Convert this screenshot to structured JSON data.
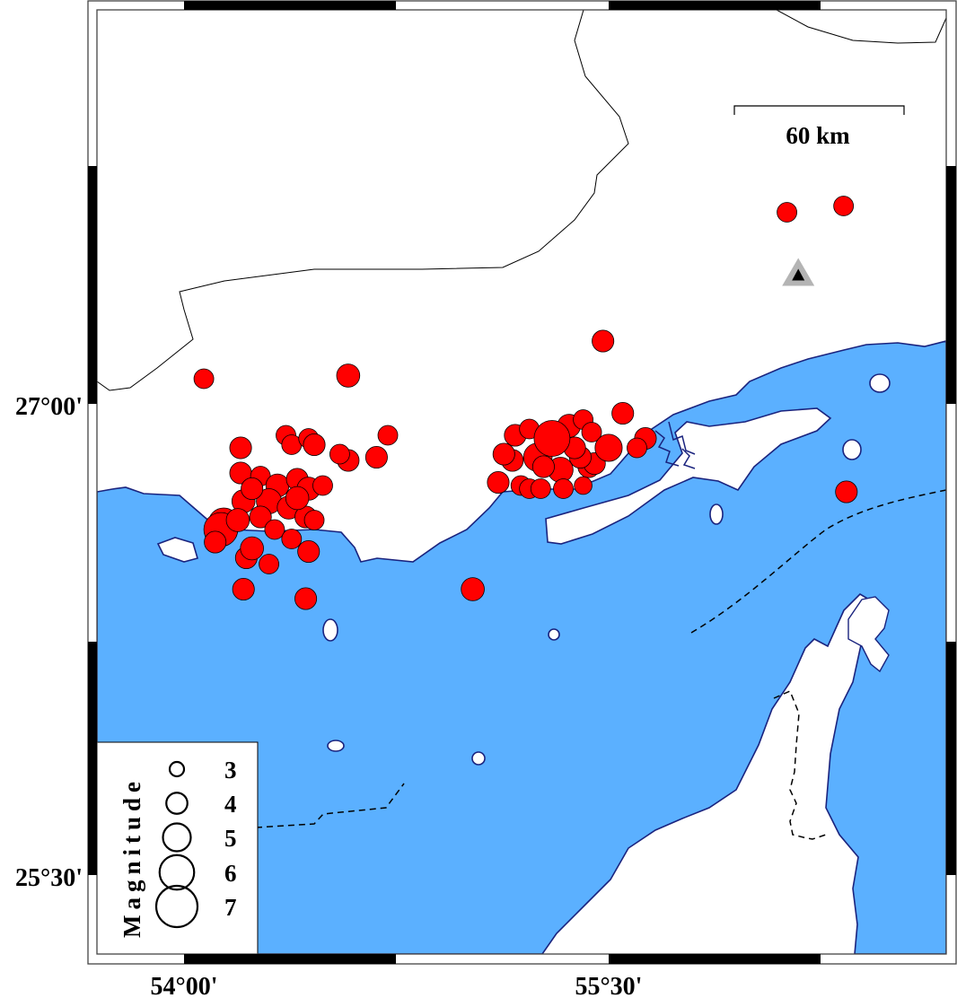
{
  "map": {
    "colors": {
      "sea": "#5BB0FF",
      "land": "#FFFFFF",
      "coastline": "#1A237E",
      "event_fill": "#FF0000",
      "station_outer": "#B4B4B4",
      "station_inner": "#000000"
    },
    "axes": {
      "lat_labels": [
        {
          "value": 27.0,
          "text": "27°00'"
        },
        {
          "value": 25.5,
          "text": "25°30'"
        }
      ],
      "lon_labels": [
        {
          "value": 54.0,
          "text": "54°00'"
        },
        {
          "value": 55.5,
          "text": "55°30'"
        }
      ]
    },
    "scale_bar": {
      "label": "60 km"
    },
    "legend": {
      "title": "Magnitude",
      "items": [
        {
          "mag": 3,
          "label": "3"
        },
        {
          "mag": 4,
          "label": "4"
        },
        {
          "mag": 5,
          "label": "5"
        },
        {
          "mag": 6,
          "label": "6"
        },
        {
          "mag": 7,
          "label": "7"
        }
      ]
    },
    "station": {
      "lon": 56.17,
      "lat": 27.41,
      "icon": "triangle-icon"
    },
    "events": [
      [
        54.07,
        27.08,
        3.0
      ],
      [
        54.58,
        27.09,
        3.5
      ],
      [
        55.48,
        27.2,
        3.3
      ],
      [
        56.13,
        27.61,
        3.0
      ],
      [
        56.33,
        27.63,
        3.0
      ],
      [
        55.55,
        26.97,
        3.3
      ],
      [
        55.63,
        26.89,
        3.3
      ],
      [
        55.6,
        26.86,
        3.0
      ],
      [
        56.34,
        26.72,
        3.3
      ],
      [
        55.02,
        26.41,
        3.5
      ],
      [
        54.21,
        26.41,
        3.3
      ],
      [
        54.43,
        26.38,
        3.3
      ],
      [
        54.44,
        26.53,
        3.3
      ],
      [
        54.72,
        26.9,
        3.0
      ],
      [
        54.68,
        26.83,
        3.3
      ],
      [
        54.58,
        26.82,
        3.3
      ],
      [
        54.55,
        26.84,
        3.0
      ],
      [
        54.2,
        26.86,
        3.3
      ],
      [
        54.2,
        26.78,
        3.3
      ],
      [
        54.36,
        26.9,
        3.0
      ],
      [
        54.38,
        26.87,
        3.0
      ],
      [
        54.44,
        26.89,
        3.0
      ],
      [
        54.46,
        26.87,
        3.3
      ],
      [
        54.14,
        26.62,
        4.6
      ],
      [
        54.13,
        26.6,
        5.1
      ],
      [
        54.11,
        26.56,
        3.3
      ],
      [
        54.22,
        26.51,
        3.3
      ],
      [
        54.3,
        26.49,
        3.0
      ],
      [
        54.24,
        26.54,
        3.5
      ],
      [
        54.27,
        26.77,
        3.0
      ],
      [
        54.33,
        26.74,
        3.5
      ],
      [
        54.4,
        26.76,
        3.3
      ],
      [
        54.44,
        26.73,
        3.5
      ],
      [
        54.49,
        26.74,
        3.0
      ],
      [
        54.3,
        26.69,
        3.8
      ],
      [
        54.37,
        26.67,
        3.5
      ],
      [
        54.43,
        26.64,
        3.3
      ],
      [
        54.4,
        26.7,
        3.5
      ],
      [
        54.27,
        26.64,
        3.3
      ],
      [
        54.32,
        26.6,
        3.0
      ],
      [
        54.38,
        26.57,
        3.0
      ],
      [
        54.46,
        26.63,
        3.0
      ],
      [
        54.21,
        26.69,
        3.5
      ],
      [
        54.24,
        26.73,
        3.3
      ],
      [
        54.19,
        26.63,
        3.5
      ],
      [
        55.11,
        26.75,
        3.3
      ],
      [
        55.19,
        26.74,
        3.0
      ],
      [
        55.16,
        26.82,
        3.3
      ],
      [
        55.17,
        26.9,
        3.3
      ],
      [
        55.22,
        26.92,
        3.0
      ],
      [
        55.25,
        26.83,
        4.3
      ],
      [
        55.36,
        26.93,
        3.5
      ],
      [
        55.41,
        26.95,
        3.0
      ],
      [
        55.44,
        26.91,
        3.0
      ],
      [
        55.43,
        26.8,
        3.3
      ],
      [
        55.45,
        26.81,
        3.3
      ],
      [
        55.5,
        26.86,
        4.1
      ],
      [
        55.4,
        26.83,
        3.3
      ],
      [
        55.33,
        26.79,
        3.8
      ],
      [
        55.22,
        26.73,
        3.0
      ],
      [
        55.26,
        26.73,
        3.0
      ],
      [
        55.34,
        26.73,
        3.0
      ],
      [
        55.41,
        26.74,
        2.7
      ],
      [
        55.27,
        26.8,
        3.3
      ],
      [
        55.13,
        26.84,
        3.3
      ],
      [
        55.38,
        26.86,
        3.3
      ],
      [
        55.3,
        26.89,
        5.4
      ]
    ]
  }
}
